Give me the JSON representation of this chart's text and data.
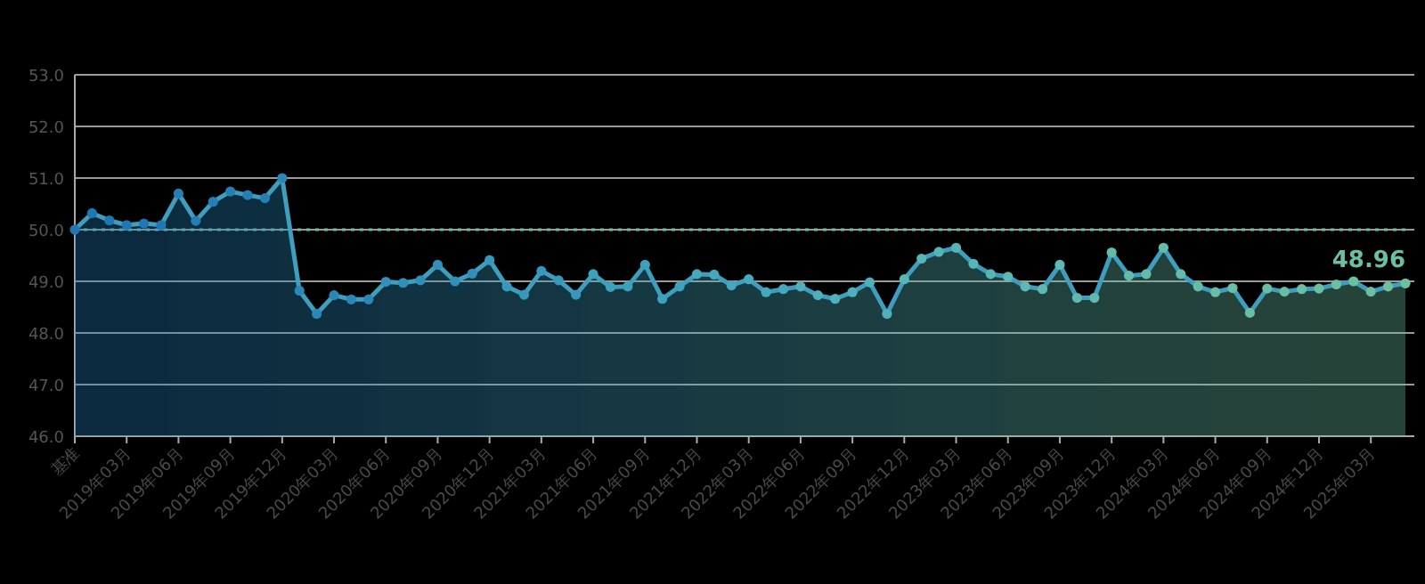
{
  "chart_data": {
    "type": "area",
    "categories": [
      "基准",
      null,
      null,
      "2019年03月",
      null,
      null,
      "2019年06月",
      null,
      null,
      "2019年09月",
      null,
      null,
      "2019年12月",
      null,
      null,
      "2020年03月",
      null,
      null,
      "2020年06月",
      null,
      null,
      "2020年09月",
      null,
      null,
      "2020年12月",
      null,
      null,
      "2021年03月",
      null,
      null,
      "2021年06月",
      null,
      null,
      "2021年09月",
      null,
      null,
      "2021年12月",
      null,
      null,
      "2022年03月",
      null,
      null,
      "2022年06月",
      null,
      null,
      "2022年09月",
      null,
      null,
      "2022年12月",
      null,
      null,
      "2023年03月",
      null,
      null,
      "2023年06月",
      null,
      null,
      "2023年09月",
      null,
      null,
      "2023年12月",
      null,
      null,
      "2024年03月",
      null,
      null,
      "2024年06月",
      null,
      null,
      "2024年09月",
      null,
      null,
      "2024年12月",
      null,
      null,
      "2025年03月",
      null,
      null
    ],
    "series": [
      {
        "color": "#3d9fbd",
        "colors": [
          "#1f77b4",
          "#1f77b4",
          "#1f77b4",
          "#1f77b4",
          "#1f77b4",
          "#1f77b4",
          "#247fb6",
          "#247fb6",
          "#247fb6",
          "#247fb6",
          "#247fb6",
          "#247fb6",
          "#2a87b8",
          "#2a87b8",
          "#2a87b8",
          "#2a87b8",
          "#2a87b8",
          "#2a87b8",
          "#3090ba",
          "#3090ba",
          "#3090ba",
          "#3090ba",
          "#3090ba",
          "#3090ba",
          "#3699bc",
          "#3699bc",
          "#3699bc",
          "#3699bc",
          "#3699bc",
          "#3699bc",
          "#3ca1bd",
          "#3ca1bd",
          "#3ca1bd",
          "#3ca1bd",
          "#3ca1bd",
          "#3ca1bd",
          "#45a9bd",
          "#45a9bd",
          "#45a9bd",
          "#45a9bd",
          "#45a9bd",
          "#45a9bd",
          "#4eb0ba",
          "#4eb0ba",
          "#4eb0ba",
          "#4eb0ba",
          "#4eb0ba",
          "#4eb0ba",
          "#56b5b6",
          "#56b5b6",
          "#56b5b6",
          "#56b5b6",
          "#56b5b6",
          "#56b5b6",
          "#5db9b1",
          "#5db9b1",
          "#5db9b1",
          "#5db9b1",
          "#5db9b1",
          "#5db9b1",
          "#63bcab",
          "#63bcab",
          "#63bcab",
          "#63bcab",
          "#63bcab",
          "#63bcab",
          "#68bea6",
          "#68bea6",
          "#68bea6",
          "#68bea6",
          "#68bea6",
          "#68bea6",
          "#6cc0a2",
          "#6cc0a2",
          "#6cc0a2",
          "#6cc0a2",
          "#6cc0a2",
          "#6cc0a2"
        ],
        "values": [
          50.0,
          50.32,
          50.18,
          50.09,
          50.12,
          50.09,
          50.7,
          50.17,
          50.54,
          50.74,
          50.67,
          50.61,
          51.0,
          48.82,
          48.37,
          48.73,
          48.65,
          48.65,
          48.99,
          48.97,
          49.02,
          49.32,
          49.0,
          49.15,
          49.41,
          48.9,
          48.74,
          49.2,
          49.02,
          48.74,
          49.14,
          48.89,
          48.9,
          49.32,
          48.66,
          48.9,
          49.14,
          49.13,
          48.92,
          49.04,
          48.79,
          48.85,
          48.9,
          48.73,
          48.66,
          48.79,
          48.98,
          48.37,
          49.04,
          49.44,
          49.57,
          49.65,
          49.34,
          49.14,
          49.09,
          48.9,
          48.85,
          49.32,
          48.68,
          48.68,
          49.56,
          49.11,
          49.14,
          49.65,
          49.14,
          48.9,
          48.79,
          48.87,
          48.39,
          48.86,
          48.8,
          48.85,
          48.86,
          48.94,
          49.0,
          48.8,
          48.9,
          48.96
        ],
        "value_labels": [
          null,
          null,
          null,
          null,
          null,
          null,
          null,
          null,
          null,
          null,
          null,
          null,
          null,
          null,
          null,
          null,
          null,
          null,
          null,
          null,
          null,
          null,
          null,
          null,
          null,
          null,
          null,
          null,
          null,
          null,
          null,
          null,
          null,
          null,
          null,
          null,
          null,
          null,
          null,
          null,
          null,
          null,
          null,
          null,
          null,
          null,
          null,
          null,
          null,
          null,
          null,
          null,
          null,
          null,
          null,
          null,
          null,
          null,
          null,
          null,
          null,
          null,
          null,
          null,
          null,
          null,
          null,
          null,
          null,
          null,
          null,
          null,
          null,
          null,
          null,
          null,
          null,
          "48.96"
        ]
      }
    ],
    "ylim": [
      46,
      53
    ],
    "yticks": [
      {
        "value": 46,
        "label": "46.0"
      },
      {
        "value": 47,
        "label": "47.0"
      },
      {
        "value": 48,
        "label": "48.0"
      },
      {
        "value": 49,
        "label": "49.0"
      },
      {
        "value": 50,
        "label": "50.0"
      },
      {
        "value": 51,
        "label": "51.0"
      },
      {
        "value": 52,
        "label": "52.0"
      },
      {
        "value": 53,
        "label": "53.0"
      }
    ],
    "grid": "y",
    "marker": "circle",
    "ref_lines": [
      {
        "axis": "y",
        "value": 50,
        "color": "#6cc0a2",
        "line_style": "dotted"
      }
    ]
  }
}
